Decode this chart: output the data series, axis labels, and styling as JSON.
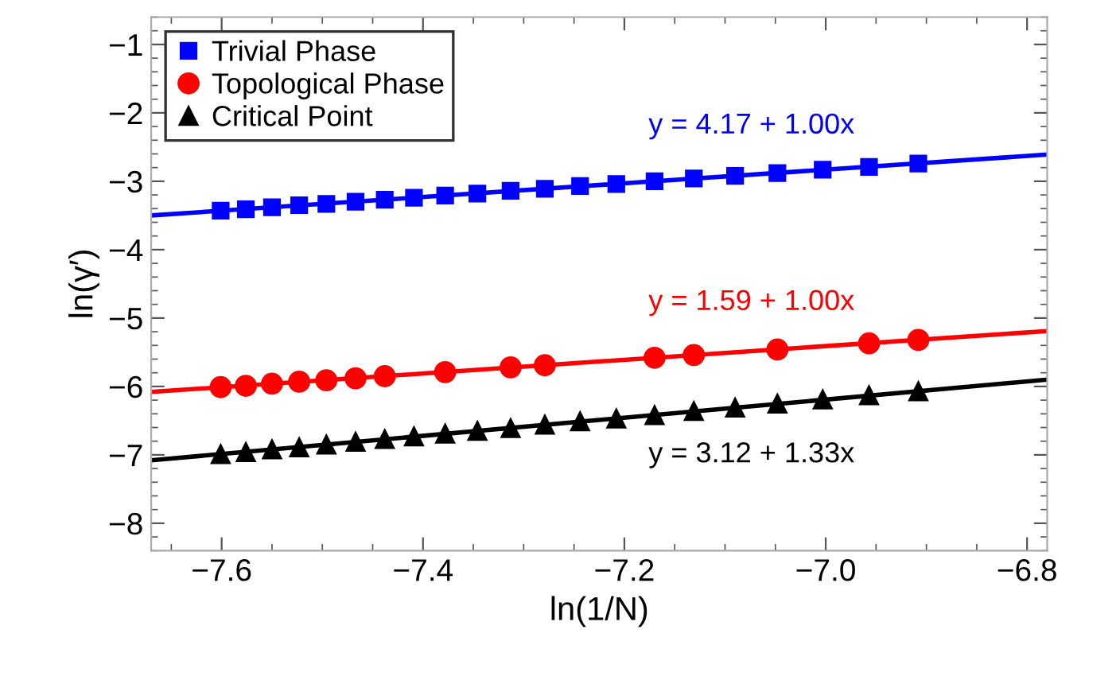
{
  "chart_data": {
    "type": "scatter",
    "xlabel": "ln(1/N)",
    "ylabel": "ln(γ′)",
    "xlim": [
      -7.67,
      -6.78
    ],
    "ylim": [
      -8.4,
      -0.6
    ],
    "xticks": [
      {
        "value": -7.6,
        "label": "−7.6"
      },
      {
        "value": -7.4,
        "label": "−7.4"
      },
      {
        "value": -7.2,
        "label": "−7.2"
      },
      {
        "value": -7.0,
        "label": "−7.0"
      },
      {
        "value": -6.8,
        "label": "−6.8"
      }
    ],
    "yticks": [
      {
        "value": -8,
        "label": "−8"
      },
      {
        "value": -7,
        "label": "−7"
      },
      {
        "value": -6,
        "label": "−6"
      },
      {
        "value": -5,
        "label": "−5"
      },
      {
        "value": -4,
        "label": "−4"
      },
      {
        "value": -3,
        "label": "−3"
      },
      {
        "value": -2,
        "label": "−2"
      },
      {
        "value": -1,
        "label": "−1"
      }
    ],
    "grid": false,
    "legend": "top left",
    "series": [
      {
        "name": "Trivial Phase",
        "marker": "square",
        "color": "#0000ff",
        "x": [
          -7.601,
          -7.576,
          -7.55,
          -7.523,
          -7.496,
          -7.467,
          -7.438,
          -7.409,
          -7.378,
          -7.346,
          -7.313,
          -7.279,
          -7.244,
          -7.208,
          -7.17,
          -7.131,
          -7.09,
          -7.048,
          -7.003,
          -6.957,
          -6.908
        ],
        "values": [
          -3.43,
          -3.41,
          -3.38,
          -3.35,
          -3.33,
          -3.3,
          -3.27,
          -3.24,
          -3.21,
          -3.18,
          -3.14,
          -3.11,
          -3.07,
          -3.04,
          -3.0,
          -2.96,
          -2.92,
          -2.88,
          -2.83,
          -2.79,
          -2.74
        ]
      },
      {
        "name": "Topological Phase",
        "marker": "circle",
        "color": "#ff0000",
        "x": [
          -7.601,
          -7.576,
          -7.55,
          -7.523,
          -7.496,
          -7.467,
          -7.438,
          -7.378,
          -7.313,
          -7.279,
          -7.17,
          -7.131,
          -7.048,
          -6.957,
          -6.908
        ],
        "values": [
          -6.01,
          -5.99,
          -5.96,
          -5.93,
          -5.91,
          -5.88,
          -5.85,
          -5.79,
          -5.72,
          -5.69,
          -5.58,
          -5.54,
          -5.46,
          -5.37,
          -5.32
        ]
      },
      {
        "name": "Critical Point",
        "marker": "triangle",
        "color": "#000000",
        "x": [
          -7.601,
          -7.576,
          -7.55,
          -7.523,
          -7.496,
          -7.467,
          -7.438,
          -7.409,
          -7.378,
          -7.346,
          -7.313,
          -7.279,
          -7.244,
          -7.208,
          -7.17,
          -7.131,
          -7.09,
          -7.048,
          -7.003,
          -6.957,
          -6.908
        ],
        "values": [
          -6.99,
          -6.96,
          -6.92,
          -6.89,
          -6.85,
          -6.81,
          -6.77,
          -6.73,
          -6.69,
          -6.65,
          -6.61,
          -6.56,
          -6.51,
          -6.47,
          -6.42,
          -6.36,
          -6.31,
          -6.25,
          -6.19,
          -6.13,
          -6.07
        ]
      },
      {
        "type": "line",
        "line_style": "solid",
        "color": "#0000ff",
        "x": [
          -7.67,
          -6.78
        ],
        "values": [
          -3.5,
          -2.61
        ]
      },
      {
        "type": "line",
        "line_style": "solid",
        "color": "#ff0000",
        "x": [
          -7.67,
          -6.78
        ],
        "values": [
          -6.08,
          -5.19
        ]
      },
      {
        "type": "line",
        "line_style": "solid",
        "color": "#000000",
        "x": [
          -7.67,
          -6.78
        ],
        "values": [
          -7.08,
          -5.9
        ]
      }
    ],
    "annotations": [
      "y = 4.17 + 1.00x",
      "y = 1.59 + 1.00x",
      "y = 3.12 + 1.33x"
    ]
  }
}
